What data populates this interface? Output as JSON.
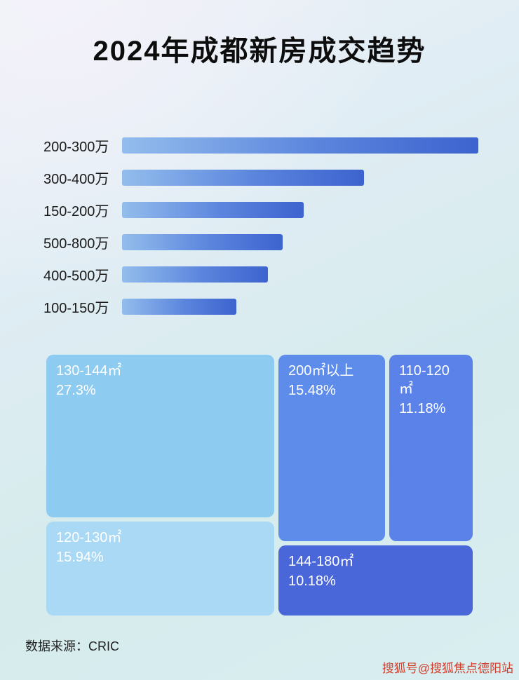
{
  "title": "2024年成都新房成交趋势",
  "footer": {
    "source": "数据来源：CRIC"
  },
  "watermark": "搜狐号@搜狐焦点德阳站",
  "chart_data": [
    {
      "type": "bar",
      "title": "2024年成都新房成交趋势",
      "orientation": "horizontal",
      "categories": [
        "200-300万",
        "300-400万",
        "150-200万",
        "500-800万",
        "400-500万",
        "100-150万"
      ],
      "values": [
        100,
        68,
        51,
        45,
        41,
        32
      ],
      "value_note": "bars carry no numeric labels in the image; values are relative bar lengths as % of the longest bar",
      "xlim": [
        0,
        100
      ],
      "grid": false,
      "legend": false,
      "bar_colors": {
        "start": "#93bdec",
        "mid": "#5b85dd",
        "end": "#3d63cf"
      }
    },
    {
      "type": "treemap",
      "items": [
        {
          "label": "130-144㎡",
          "value": 27.3,
          "value_text": "27.3%",
          "color": "#8dcbf1"
        },
        {
          "label": "120-130㎡",
          "value": 15.94,
          "value_text": "15.94%",
          "color": "#a9d9f4"
        },
        {
          "label": "200㎡以上",
          "value": 15.48,
          "value_text": "15.48%",
          "color": "#5e8cea"
        },
        {
          "label": "110-120㎡",
          "value": 11.18,
          "value_text": "11.18%",
          "color": "#5b82e9"
        },
        {
          "label": "144-180㎡",
          "value": 10.18,
          "value_text": "10.18%",
          "color": "#4a67d9"
        }
      ]
    }
  ]
}
